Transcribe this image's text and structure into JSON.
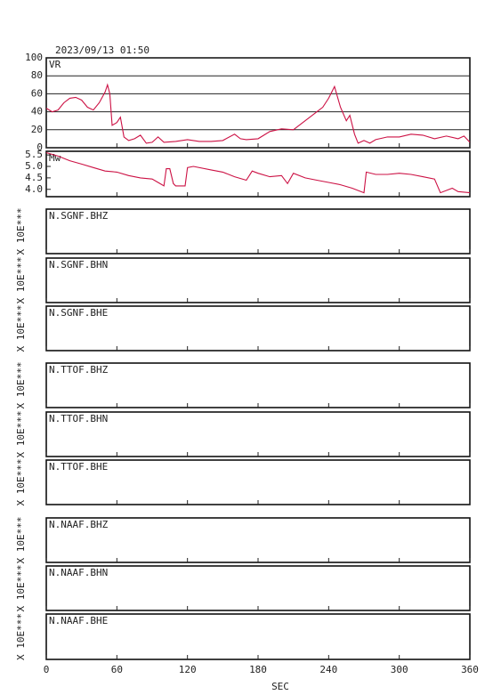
{
  "chart_data": [
    {
      "type": "line",
      "title": "2023/09/13 01:50",
      "label": "VR",
      "color": "#cc1144",
      "grid": true,
      "x": [
        0,
        5,
        10,
        15,
        20,
        25,
        30,
        35,
        40,
        45,
        50,
        52,
        54,
        56,
        60,
        63,
        66,
        70,
        75,
        80,
        85,
        90,
        95,
        100,
        110,
        120,
        130,
        140,
        150,
        160,
        165,
        170,
        180,
        190,
        200,
        210,
        220,
        230,
        235,
        240,
        245,
        250,
        255,
        258,
        262,
        265,
        270,
        275,
        280,
        290,
        300,
        310,
        320,
        330,
        340,
        350,
        355,
        360
      ],
      "values": [
        44,
        40,
        42,
        50,
        55,
        56,
        53,
        45,
        42,
        50,
        62,
        70,
        60,
        25,
        28,
        34,
        12,
        8,
        10,
        14,
        5,
        6,
        12,
        6,
        7,
        9,
        7,
        7,
        8,
        15,
        10,
        9,
        10,
        18,
        21,
        20,
        30,
        40,
        45,
        55,
        68,
        45,
        30,
        36,
        15,
        5,
        8,
        5,
        9,
        12,
        12,
        15,
        14,
        10,
        13,
        10,
        13,
        6
      ],
      "ylim": [
        0,
        100
      ],
      "yticks": [
        0,
        20,
        40,
        60,
        80,
        100
      ]
    },
    {
      "type": "line",
      "label": "Mw",
      "color": "#cc1144",
      "x": [
        0,
        10,
        20,
        30,
        40,
        50,
        60,
        70,
        80,
        90,
        95,
        100,
        102,
        105,
        108,
        110,
        118,
        120,
        125,
        140,
        150,
        160,
        170,
        175,
        180,
        190,
        200,
        205,
        210,
        220,
        230,
        240,
        250,
        260,
        270,
        272,
        280,
        290,
        300,
        310,
        320,
        330,
        335,
        345,
        350,
        360
      ],
      "values": [
        5.6,
        5.45,
        5.25,
        5.1,
        4.95,
        4.8,
        4.75,
        4.6,
        4.5,
        4.45,
        4.3,
        4.15,
        4.9,
        4.9,
        4.25,
        4.15,
        4.15,
        4.95,
        5.0,
        4.85,
        4.75,
        4.55,
        4.4,
        4.8,
        4.7,
        4.55,
        4.6,
        4.25,
        4.7,
        4.5,
        4.4,
        4.3,
        4.2,
        4.05,
        3.85,
        4.75,
        4.65,
        4.65,
        4.7,
        4.65,
        4.55,
        4.45,
        3.85,
        4.05,
        3.9,
        3.85
      ],
      "ylim": [
        3.68,
        5.66
      ],
      "yticks": [
        {
          "value": 4.0,
          "label": "4.0"
        },
        4.5,
        {
          "value": 5.0,
          "label": "5.0"
        },
        5.5
      ]
    },
    {
      "type": "empty",
      "label": "N.SGNF.BHZ",
      "ylabel": "X 10E***"
    },
    {
      "type": "empty",
      "label": "N.SGNF.BHN",
      "ylabel": "X 10E***"
    },
    {
      "type": "empty",
      "label": "N.SGNF.BHE",
      "ylabel": "X 10E***"
    },
    {
      "type": "empty",
      "label": "N.TTOF.BHZ",
      "ylabel": "X 10E***"
    },
    {
      "type": "empty",
      "label": "N.TTOF.BHN",
      "ylabel": "X 10E***"
    },
    {
      "type": "empty",
      "label": "N.TTOF.BHE",
      "ylabel": "X 10E***"
    },
    {
      "type": "empty",
      "label": "N.NAAF.BHZ",
      "ylabel": "X 10E***"
    },
    {
      "type": "empty",
      "label": "N.NAAF.BHN",
      "ylabel": "X 10E***"
    },
    {
      "type": "empty",
      "label": "N.NAAF.BHE",
      "ylabel": "X 10E***",
      "xlabel": "SEC",
      "xlim": [
        0,
        360
      ],
      "xticks": [
        0,
        60,
        120,
        180,
        240,
        300,
        360
      ]
    }
  ]
}
